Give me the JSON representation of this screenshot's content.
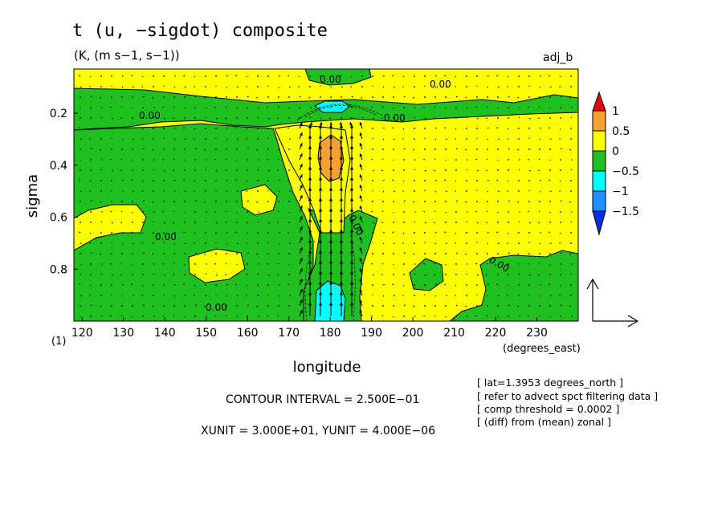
{
  "header": {
    "title": "t (u, −sigdot) composite",
    "units": "(K, (m s−1, s−1))",
    "label": "adj_b"
  },
  "axes": {
    "ylabel": "sigma",
    "xlabel": "longitude",
    "xunit": "(degrees_east)",
    "corner": "(1)",
    "xticks": [
      "120",
      "130",
      "140",
      "150",
      "160",
      "170",
      "180",
      "190",
      "200",
      "210",
      "220",
      "230"
    ],
    "yticks": [
      "0.2",
      "0.4",
      "0.6",
      "0.8"
    ]
  },
  "colorbar": {
    "labels": [
      "1",
      "0.5",
      "0",
      "−0.5",
      "−1",
      "−1.5"
    ],
    "colors": [
      "#e8000b",
      "#f5a030",
      "#ffff00",
      "#20c020",
      "#00ffff",
      "#1e90ff",
      "#0030e0"
    ]
  },
  "footer": {
    "contour": "CONTOUR INTERVAL = 2.500E−01",
    "units": "XUNIT = 3.000E+01, YUNIT = 4.000E−06"
  },
  "notes": [
    "[ lat=1.3953 degrees_north ]",
    "[ refer to advect spct filtering data ]",
    "[ comp threshold = 0.0002 ]",
    "[ (diff) from (mean) zonal ]"
  ],
  "contour_labels": [
    "0.00",
    "0.00",
    "0.00",
    "0.00",
    "0.00",
    "0.00",
    "0.00",
    "0.00"
  ],
  "chart_data": {
    "type": "heatmap",
    "title": "t (u, −sigdot) composite",
    "subtitle": "(K, (m s−1, s−1))",
    "xlabel": "longitude",
    "ylabel": "sigma",
    "xlim": [
      118,
      240
    ],
    "ylim": [
      1.0,
      0.03
    ],
    "contour_interval": 0.25,
    "levels": [
      -1.5,
      -1,
      -0.5,
      0,
      0.5,
      1
    ],
    "overlay": "vector field (u, -sigdot)",
    "regions": [
      {
        "value_range": [
          0,
          0.5
        ],
        "description": "positive background"
      },
      {
        "value_range": [
          -0.5,
          0
        ],
        "description": "negative areas"
      },
      {
        "value_range": [
          0.5,
          1.0
        ],
        "lon": 180,
        "sigma": 0.3
      },
      {
        "value_range": [
          -1.0,
          -0.5
        ],
        "lon": 180,
        "sigma": 0.93
      },
      {
        "value_range": [
          -1.0,
          -0.5
        ],
        "lon": 184,
        "sigma": 0.15
      }
    ]
  }
}
